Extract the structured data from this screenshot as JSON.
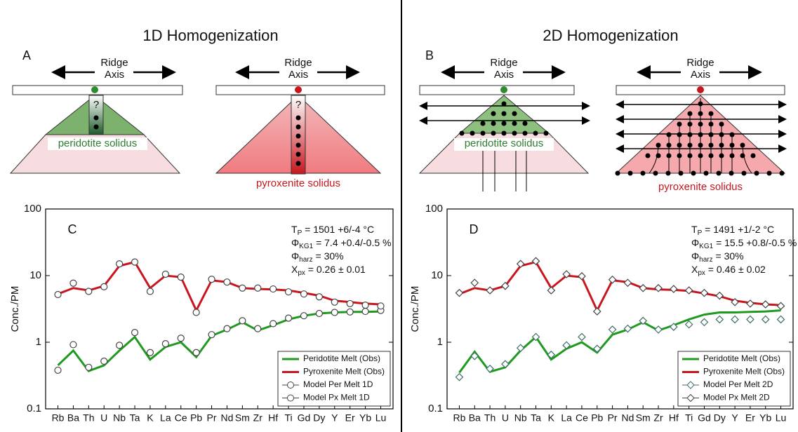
{
  "diagrams": [
    {
      "title": "1D Homogenization",
      "label": "A",
      "ridge": "Ridge",
      "axis": "Axis",
      "question": "?",
      "left_solidus": "peridotite solidus",
      "right_solidus": "pyroxenite solidus"
    },
    {
      "title": "2D Homogenization",
      "label": "B",
      "ridge": "Ridge",
      "axis": "Axis",
      "left_solidus": "peridotite solidus",
      "right_solidus": "pyroxenite solidus"
    }
  ],
  "chart_data": [
    {
      "type": "line",
      "panel_label": "C",
      "y_label": "Conc./PM",
      "log_scale": true,
      "legend": "lower right",
      "annotations": [
        {
          "symbol": "T",
          "sub": "P",
          "text": " = 1501 +6/-4 °C"
        },
        {
          "symbol": "Φ",
          "sub": "KG1",
          "text": " = 7.4 +0.4/-0.5 %"
        },
        {
          "symbol": "Φ",
          "sub": "harz",
          "text": " = 30%"
        },
        {
          "symbol": "X",
          "sub": "px",
          "text": " = 0.26 ± 0.01"
        }
      ],
      "categories": [
        "Rb",
        "Ba",
        "Th",
        "U",
        "Nb",
        "Ta",
        "K",
        "La",
        "Ce",
        "Pb",
        "Pr",
        "Nd",
        "Sm",
        "Zr",
        "Hf",
        "Ti",
        "Gd",
        "Dy",
        "Y",
        "Er",
        "Yb",
        "Lu"
      ],
      "ylim": [
        0.1,
        100
      ],
      "yticks": [
        0.1,
        1,
        10,
        100
      ],
      "series": [
        {
          "name": "Peridotite Melt (Obs)",
          "color": "#1f9a1f",
          "marker": "line",
          "values": [
            0.45,
            0.75,
            0.37,
            0.45,
            0.75,
            1.2,
            0.55,
            0.85,
            1.0,
            0.6,
            1.25,
            1.55,
            2.0,
            1.5,
            1.8,
            2.2,
            2.5,
            2.7,
            2.8,
            2.85,
            2.85,
            2.9
          ]
        },
        {
          "name": "Pyroxenite Melt (Obs)",
          "color": "#c8161e",
          "marker": "line",
          "values": [
            5.3,
            6.5,
            6.0,
            7.0,
            14,
            16,
            6.5,
            10,
            9.5,
            3.0,
            8.5,
            8.0,
            6.5,
            6.3,
            6.2,
            6.0,
            5.5,
            5.0,
            4.2,
            4.0,
            3.8,
            3.7
          ]
        },
        {
          "name": "Model Per Melt 1D",
          "color": "#444444",
          "marker": "circle",
          "values": [
            0.38,
            0.92,
            0.42,
            0.52,
            0.9,
            1.4,
            0.7,
            0.95,
            1.15,
            0.7,
            1.3,
            1.6,
            2.1,
            1.6,
            1.9,
            2.3,
            2.5,
            2.7,
            2.8,
            2.85,
            2.9,
            3.0
          ]
        },
        {
          "name": "Model Px Melt 1D",
          "color": "#444444",
          "marker": "circle",
          "values": [
            5.2,
            7.7,
            5.8,
            6.8,
            15,
            16,
            5.8,
            10.5,
            9.5,
            2.8,
            8.8,
            8.0,
            6.5,
            6.5,
            6.3,
            5.7,
            5.3,
            4.8,
            4.0,
            3.8,
            3.6,
            3.5
          ]
        }
      ]
    },
    {
      "type": "line",
      "panel_label": "D",
      "y_label": "Conc./PM",
      "log_scale": true,
      "legend": "lower right",
      "annotations": [
        {
          "symbol": "T",
          "sub": "P",
          "text": " = 1491 +1/-2 °C"
        },
        {
          "symbol": "Φ",
          "sub": "KG1",
          "text": " = 15.5 +0.8/-0.5 %"
        },
        {
          "symbol": "Φ",
          "sub": "harz",
          "text": " = 30%"
        },
        {
          "symbol": "X",
          "sub": "px",
          "text": " = 0.46 ± 0.02"
        }
      ],
      "categories": [
        "Rb",
        "Ba",
        "Th",
        "U",
        "Nb",
        "Ta",
        "K",
        "La",
        "Ce",
        "Pb",
        "Pr",
        "Nd",
        "Sm",
        "Zr",
        "Hf",
        "Ti",
        "Gd",
        "Dy",
        "Y",
        "Er",
        "Yb",
        "Lu"
      ],
      "ylim": [
        0.1,
        100
      ],
      "yticks": [
        0.1,
        1,
        10,
        100
      ],
      "series": [
        {
          "name": "Peridotite Melt (Obs)",
          "color": "#1f9a1f",
          "marker": "line",
          "values": [
            0.35,
            0.72,
            0.36,
            0.42,
            0.75,
            1.2,
            0.55,
            0.8,
            1.0,
            0.7,
            1.3,
            1.55,
            2.0,
            1.5,
            1.8,
            2.2,
            2.6,
            2.8,
            2.8,
            2.85,
            2.9,
            3.0
          ]
        },
        {
          "name": "Pyroxenite Melt (Obs)",
          "color": "#c8161e",
          "marker": "line",
          "values": [
            5.3,
            6.5,
            6.0,
            7.0,
            14,
            16,
            6.5,
            10,
            9.5,
            3.0,
            8.5,
            8.0,
            6.5,
            6.2,
            6.1,
            5.9,
            5.4,
            4.9,
            4.2,
            3.9,
            3.7,
            3.6
          ]
        },
        {
          "name": "Model Per Melt 2D",
          "color": "#3f6f6a",
          "marker": "diamond",
          "values": [
            0.3,
            0.62,
            0.4,
            0.47,
            0.82,
            1.2,
            0.65,
            0.9,
            1.2,
            0.8,
            1.55,
            1.6,
            2.1,
            1.55,
            1.7,
            1.85,
            2.0,
            2.2,
            2.2,
            2.2,
            2.2,
            2.2
          ]
        },
        {
          "name": "Model Px Melt 2D",
          "color": "#444444",
          "marker": "diamond",
          "values": [
            5.5,
            7.8,
            6.0,
            7.0,
            15,
            16.5,
            6.0,
            10.5,
            9.8,
            2.9,
            8.7,
            7.8,
            6.5,
            6.5,
            6.3,
            6.0,
            5.5,
            5.0,
            4.0,
            3.8,
            3.7,
            3.5
          ]
        }
      ]
    }
  ]
}
